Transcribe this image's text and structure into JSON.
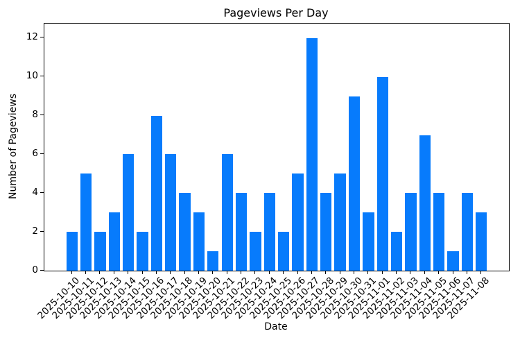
{
  "chart_data": {
    "type": "bar",
    "title": "Pageviews Per Day",
    "xlabel": "Date",
    "ylabel": "Number of Pageviews",
    "categories": [
      "2025-10-10",
      "2025-10-11",
      "2025-10-12",
      "2025-10-13",
      "2025-10-14",
      "2025-10-15",
      "2025-10-16",
      "2025-10-17",
      "2025-10-18",
      "2025-10-19",
      "2025-10-20",
      "2025-10-21",
      "2025-10-22",
      "2025-10-23",
      "2025-10-24",
      "2025-10-25",
      "2025-10-26",
      "2025-10-27",
      "2025-10-28",
      "2025-10-29",
      "2025-10-30",
      "2025-10-31",
      "2025-11-01",
      "2025-11-02",
      "2025-11-03",
      "2025-11-04",
      "2025-11-05",
      "2025-11-06",
      "2025-11-07",
      "2025-11-08"
    ],
    "values": [
      2,
      5,
      2,
      3,
      6,
      2,
      8,
      6,
      4,
      3,
      1,
      6,
      4,
      2,
      4,
      2,
      5,
      12,
      4,
      5,
      9,
      3,
      10,
      2,
      4,
      7,
      4,
      1,
      4,
      3
    ],
    "yticks": [
      0,
      2,
      4,
      6,
      8,
      10,
      12
    ],
    "ylim": [
      0,
      12.75
    ],
    "grid": false,
    "legend": null,
    "tick_label_rotation": 45,
    "colors": {
      "bar": "#077bfc",
      "axis": "#000000",
      "text": "#000000",
      "background": "#ffffff"
    }
  }
}
